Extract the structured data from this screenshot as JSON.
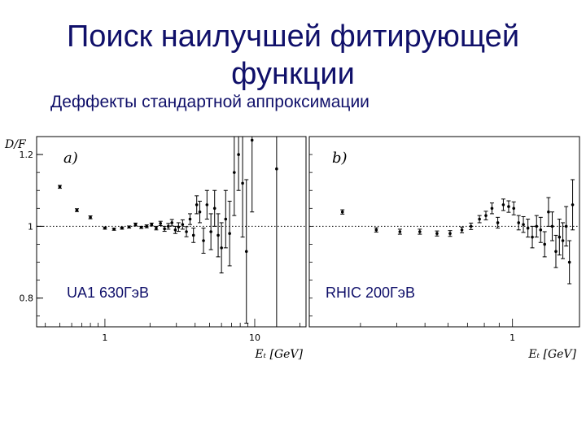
{
  "slide": {
    "title_line1": "Поиск наилучшей фитирующей",
    "title_line2": "функции",
    "subtitle": "Деффекты стандартной аппроксимации"
  },
  "chart_data": [
    {
      "type": "scatter",
      "panel_label": "a)",
      "annotation": "UA1  630ГэВ",
      "ylabel": "D/F",
      "xlabel": "E_T [GeV]",
      "xscale": "log",
      "xlim": [
        0.35,
        22
      ],
      "ylim": [
        0.72,
        1.25
      ],
      "yticks": [
        0.8,
        1,
        1.2
      ],
      "yticklabels": [
        "0.8",
        "1",
        "1.2"
      ],
      "xticks": [
        1,
        10
      ],
      "xticklabels": [
        "1",
        "10"
      ],
      "reference_line": 1,
      "points": [
        {
          "x": 0.5,
          "y": 1.11,
          "err": 0.004
        },
        {
          "x": 0.65,
          "y": 1.045,
          "err": 0.004
        },
        {
          "x": 0.8,
          "y": 1.025,
          "err": 0.004
        },
        {
          "x": 1.0,
          "y": 0.995,
          "err": 0.003
        },
        {
          "x": 1.15,
          "y": 0.992,
          "err": 0.003
        },
        {
          "x": 1.3,
          "y": 0.995,
          "err": 0.003
        },
        {
          "x": 1.45,
          "y": 0.998,
          "err": 0.003
        },
        {
          "x": 1.6,
          "y": 1.005,
          "err": 0.004
        },
        {
          "x": 1.75,
          "y": 0.997,
          "err": 0.003
        },
        {
          "x": 1.9,
          "y": 1.0,
          "err": 0.004
        },
        {
          "x": 2.05,
          "y": 1.005,
          "err": 0.004
        },
        {
          "x": 2.2,
          "y": 0.995,
          "err": 0.005
        },
        {
          "x": 2.35,
          "y": 1.008,
          "err": 0.006
        },
        {
          "x": 2.5,
          "y": 0.993,
          "err": 0.007
        },
        {
          "x": 2.65,
          "y": 1.0,
          "err": 0.008
        },
        {
          "x": 2.8,
          "y": 1.01,
          "err": 0.009
        },
        {
          "x": 2.95,
          "y": 0.99,
          "err": 0.01
        },
        {
          "x": 3.1,
          "y": 0.998,
          "err": 0.012
        },
        {
          "x": 3.3,
          "y": 1.005,
          "err": 0.013
        },
        {
          "x": 3.5,
          "y": 0.985,
          "err": 0.014
        },
        {
          "x": 3.7,
          "y": 1.02,
          "err": 0.015
        },
        {
          "x": 3.9,
          "y": 0.975,
          "err": 0.02
        },
        {
          "x": 4.1,
          "y": 1.06,
          "err": 0.025
        },
        {
          "x": 4.3,
          "y": 1.04,
          "err": 0.03
        },
        {
          "x": 4.55,
          "y": 0.96,
          "err": 0.035
        },
        {
          "x": 4.8,
          "y": 1.06,
          "err": 0.04
        },
        {
          "x": 5.1,
          "y": 0.985,
          "err": 0.05
        },
        {
          "x": 5.4,
          "y": 1.05,
          "err": 0.05
        },
        {
          "x": 5.7,
          "y": 0.975,
          "err": 0.06
        },
        {
          "x": 6.0,
          "y": 0.94,
          "err": 0.07
        },
        {
          "x": 6.4,
          "y": 1.02,
          "err": 0.08
        },
        {
          "x": 6.8,
          "y": 0.98,
          "err": 0.09
        },
        {
          "x": 7.3,
          "y": 1.15,
          "err": 0.12
        },
        {
          "x": 7.8,
          "y": 1.2,
          "err": 0.1
        },
        {
          "x": 8.3,
          "y": 1.12,
          "err": 0.15
        },
        {
          "x": 8.8,
          "y": 0.93,
          "err": 0.2
        },
        {
          "x": 9.6,
          "y": 1.24,
          "err": 0.2
        },
        {
          "x": 14,
          "y": 1.16,
          "err": 0.45
        }
      ]
    },
    {
      "type": "scatter",
      "panel_label": "b)",
      "annotation": "RHIC  200ГэВ",
      "xlabel": "E_T [GeV]",
      "xscale": "log",
      "xlim": [
        0.2,
        1.7
      ],
      "ylim": [
        0.72,
        1.25
      ],
      "xticks": [
        1
      ],
      "xticklabels": [
        "1"
      ],
      "reference_line": 1,
      "points": [
        {
          "x": 0.26,
          "y": 1.04,
          "err": 0.006
        },
        {
          "x": 0.34,
          "y": 0.99,
          "err": 0.006
        },
        {
          "x": 0.41,
          "y": 0.985,
          "err": 0.007
        },
        {
          "x": 0.48,
          "y": 0.985,
          "err": 0.007
        },
        {
          "x": 0.55,
          "y": 0.98,
          "err": 0.007
        },
        {
          "x": 0.61,
          "y": 0.98,
          "err": 0.008
        },
        {
          "x": 0.67,
          "y": 0.99,
          "err": 0.008
        },
        {
          "x": 0.72,
          "y": 1.0,
          "err": 0.009
        },
        {
          "x": 0.77,
          "y": 1.02,
          "err": 0.01
        },
        {
          "x": 0.81,
          "y": 1.03,
          "err": 0.012
        },
        {
          "x": 0.85,
          "y": 1.05,
          "err": 0.015
        },
        {
          "x": 0.89,
          "y": 1.01,
          "err": 0.015
        },
        {
          "x": 0.93,
          "y": 1.06,
          "err": 0.016
        },
        {
          "x": 0.97,
          "y": 1.055,
          "err": 0.016
        },
        {
          "x": 1.01,
          "y": 1.05,
          "err": 0.018
        },
        {
          "x": 1.05,
          "y": 1.01,
          "err": 0.02
        },
        {
          "x": 1.09,
          "y": 1.005,
          "err": 0.022
        },
        {
          "x": 1.13,
          "y": 0.995,
          "err": 0.025
        },
        {
          "x": 1.17,
          "y": 0.97,
          "err": 0.03
        },
        {
          "x": 1.21,
          "y": 1.0,
          "err": 0.03
        },
        {
          "x": 1.25,
          "y": 0.99,
          "err": 0.035
        },
        {
          "x": 1.29,
          "y": 0.95,
          "err": 0.035
        },
        {
          "x": 1.33,
          "y": 1.04,
          "err": 0.04
        },
        {
          "x": 1.37,
          "y": 1.0,
          "err": 0.04
        },
        {
          "x": 1.41,
          "y": 0.93,
          "err": 0.045
        },
        {
          "x": 1.45,
          "y": 0.97,
          "err": 0.05
        },
        {
          "x": 1.49,
          "y": 0.96,
          "err": 0.05
        },
        {
          "x": 1.53,
          "y": 1.0,
          "err": 0.055
        },
        {
          "x": 1.57,
          "y": 0.9,
          "err": 0.06
        },
        {
          "x": 1.61,
          "y": 1.06,
          "err": 0.07
        }
      ]
    }
  ]
}
